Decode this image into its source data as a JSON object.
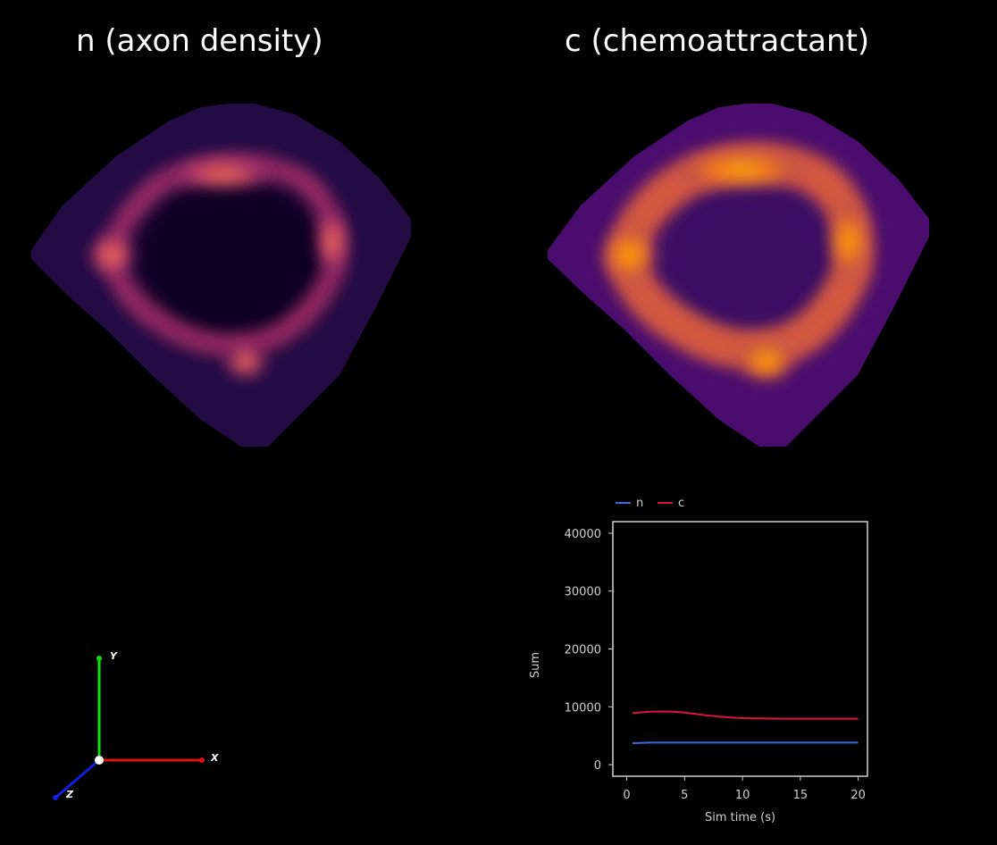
{
  "panels": {
    "n": {
      "title": "n (axon density)"
    },
    "c": {
      "title": "c (chemoattractant)"
    }
  },
  "axes_widget": {
    "x_label": "X",
    "y_label": "Y",
    "z_label": "Z",
    "x_color": "#e01010",
    "y_color": "#10e010",
    "z_color": "#1020e0"
  },
  "colormap": "inferno",
  "chart_data": {
    "type": "line",
    "xlabel": "Sim time (s)",
    "ylabel": "Sum",
    "xlim": [
      -1.2,
      20.8
    ],
    "ylim": [
      -2000,
      42000
    ],
    "xticks": [
      0,
      5,
      10,
      15,
      20
    ],
    "yticks": [
      0,
      10000,
      20000,
      30000,
      40000
    ],
    "x_tick_labels": [
      "0",
      "5",
      "10",
      "15",
      "20"
    ],
    "y_tick_labels": [
      "0",
      "10000",
      "20000",
      "30000",
      "40000"
    ],
    "legend_position": "top-left (above axes)",
    "grid": false,
    "x": [
      0.5,
      1,
      2,
      3,
      4,
      5,
      6,
      7,
      8,
      9,
      10,
      11,
      12,
      13,
      14,
      15,
      16,
      17,
      18,
      19,
      20
    ],
    "series": [
      {
        "name": "n",
        "color": "#4169e1",
        "values": [
          3700,
          3750,
          3800,
          3800,
          3800,
          3800,
          3800,
          3800,
          3800,
          3800,
          3800,
          3800,
          3800,
          3800,
          3800,
          3800,
          3800,
          3800,
          3800,
          3800,
          3800
        ]
      },
      {
        "name": "c",
        "color": "#dc143c",
        "values": [
          8900,
          9000,
          9150,
          9200,
          9150,
          9000,
          8750,
          8500,
          8300,
          8150,
          8050,
          8000,
          7980,
          7960,
          7950,
          7950,
          7950,
          7950,
          7950,
          7950,
          7950
        ]
      }
    ]
  }
}
